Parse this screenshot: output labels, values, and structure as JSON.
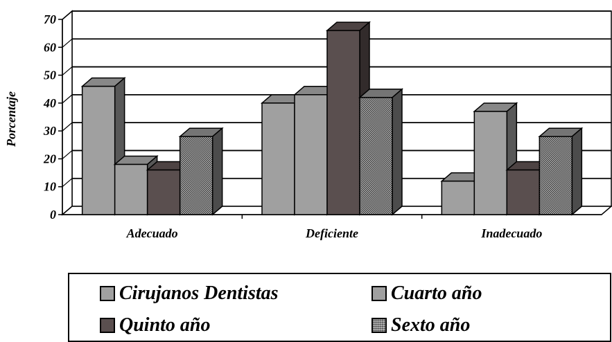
{
  "chart_data": {
    "type": "bar",
    "categories": [
      "Adecuado",
      "Deficiente",
      "Inadecuado"
    ],
    "ylabel": "Porcentaje",
    "xlabel": "",
    "ylim": [
      0,
      70
    ],
    "yticks": [
      "0",
      "10",
      "20",
      "30",
      "40",
      "50",
      "60",
      "70"
    ],
    "grid": true,
    "three_d": true,
    "legend_position": "bottom",
    "series": [
      {
        "name": "Cirujanos Dentistas",
        "values": [
          46,
          40,
          12
        ],
        "color": "#a0a0a0",
        "pattern": "solid"
      },
      {
        "name": "Cuarto año",
        "values": [
          18,
          43,
          37
        ],
        "color": "#a0a0a0",
        "pattern": "solid"
      },
      {
        "name": "Quinto año",
        "values": [
          16,
          66,
          16
        ],
        "color": "#5a4f4f",
        "pattern": "solid"
      },
      {
        "name": "Sexto año",
        "values": [
          28,
          42,
          28
        ],
        "color": "#8a8a8a",
        "pattern": "dots"
      }
    ]
  }
}
